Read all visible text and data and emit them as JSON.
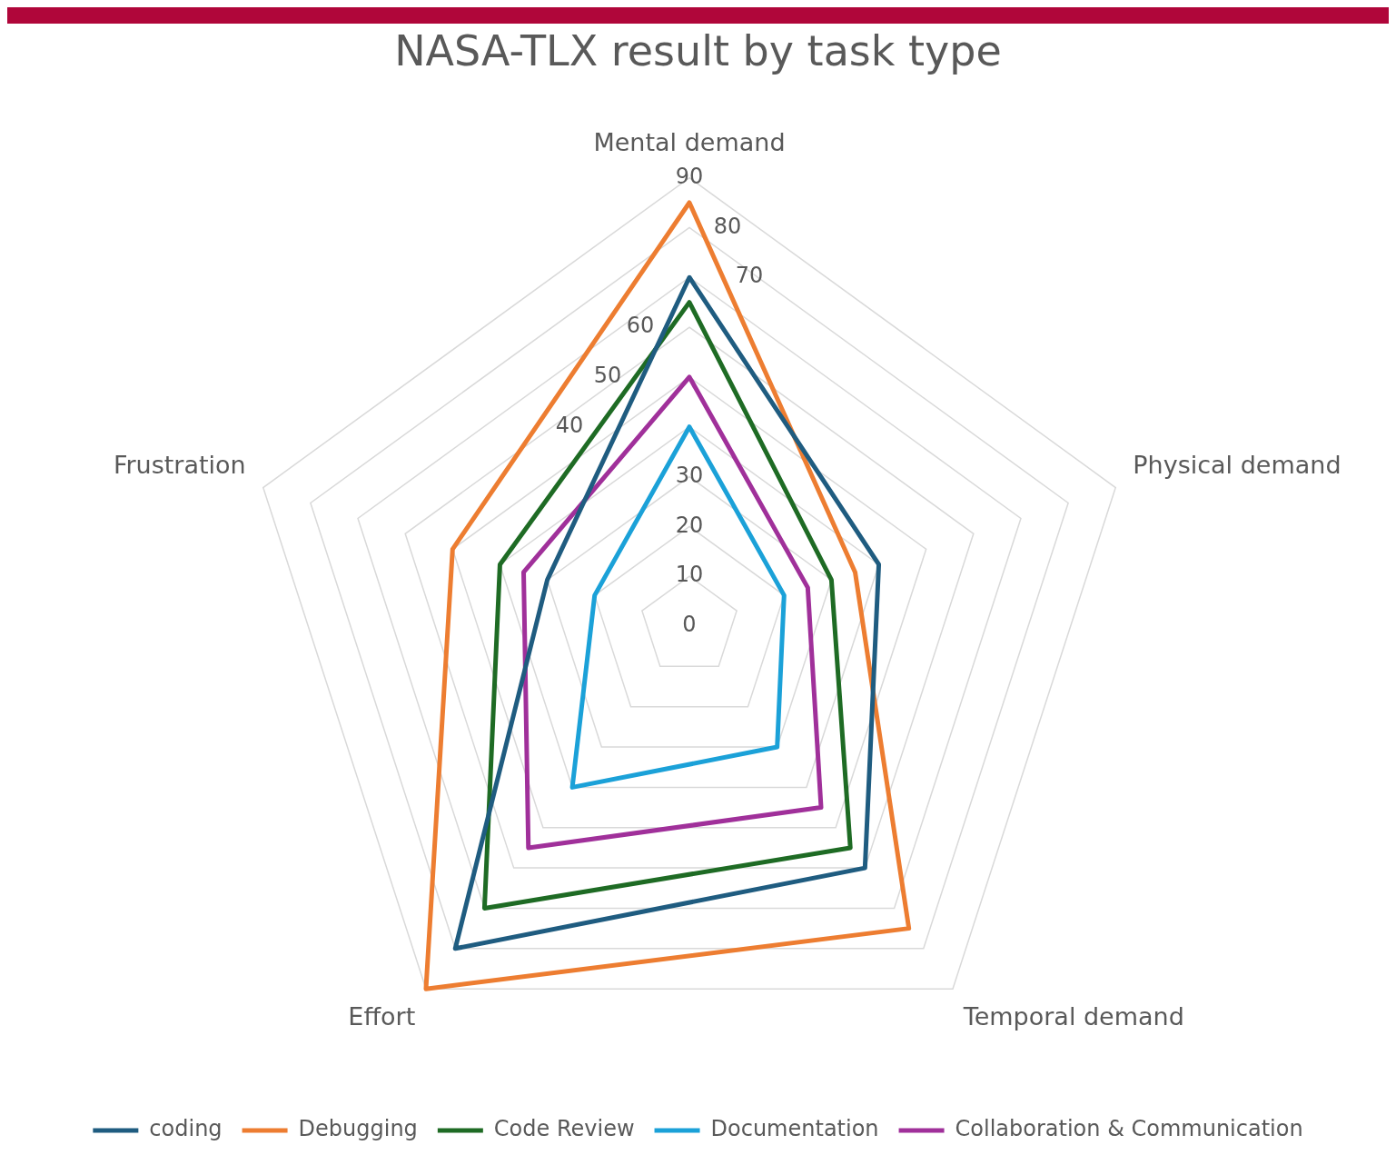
{
  "chart_data": {
    "type": "radar",
    "title": "NASA-TLX result by task type",
    "categories": [
      "Mental demand",
      "Physical demand",
      "Temporal demand",
      "Effort",
      "Frustration"
    ],
    "series": [
      {
        "name": "coding",
        "color": "#1f5c80",
        "values": [
          70,
          40,
          60,
          80,
          30
        ]
      },
      {
        "name": "Debugging",
        "color": "#ed7d31",
        "values": [
          85,
          35,
          75,
          90,
          50
        ]
      },
      {
        "name": "Code Review",
        "color": "#1e6b24",
        "values": [
          65,
          30,
          55,
          70,
          40
        ]
      },
      {
        "name": "Documentation",
        "color": "#1ba1d8",
        "values": [
          40,
          20,
          30,
          40,
          20
        ]
      },
      {
        "name": "Collaboration & Communication",
        "color": "#a0309a",
        "values": [
          50,
          25,
          45,
          55,
          35
        ]
      }
    ],
    "ylim": [
      0,
      90
    ],
    "yticks": [
      0,
      10,
      20,
      30,
      40,
      50,
      60,
      70,
      80,
      90
    ],
    "grid": true,
    "legend": "bottom",
    "marker": "none"
  }
}
